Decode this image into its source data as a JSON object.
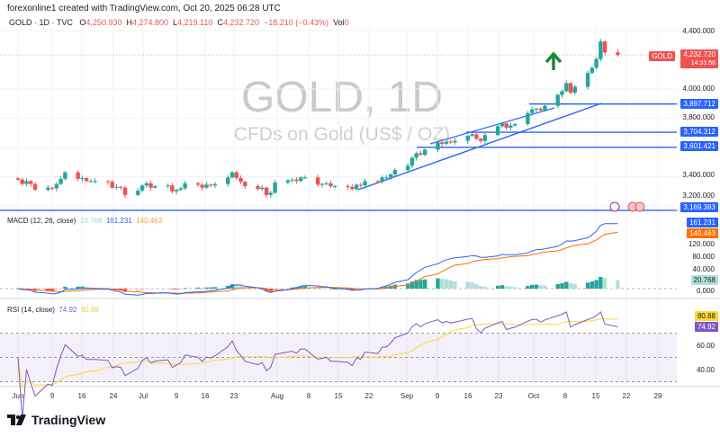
{
  "credit": "forexonline1 created with TradingView.com, Oct 20, 2025 06:28 UTC",
  "legend": {
    "symbol": "GOLD · 1D · TVC",
    "o_label": "O",
    "o": "4,250.930",
    "h_label": "H",
    "h": "4,274.800",
    "l_label": "L",
    "l": "4,219.110",
    "c_label": "C",
    "c": "4,232.720",
    "change": "−18.210 (−0.43%)",
    "vol_label": "Vol",
    "vol": "0"
  },
  "watermark": {
    "title": "GOLD, 1D",
    "subtitle": "CFDs on Gold (US$ / OZ)"
  },
  "price_axis": [
    "4,400.000",
    "4,000.000",
    "3,800.000",
    "3,400.000",
    "3,200.000"
  ],
  "price_tag": {
    "symbol": "GOLD",
    "price": "4,232.720",
    "countdown": "14:31:58"
  },
  "levels": [
    {
      "label": "3,897.712",
      "value": 3897.712
    },
    {
      "label": "3,704.312",
      "value": 3704.312
    },
    {
      "label": "3,601.421",
      "value": 3601.421
    },
    {
      "label": "3,169.383",
      "value": 3169.383
    }
  ],
  "macd": {
    "title": "MACD (12, 26, close)",
    "hist": "20.768",
    "macd": "161.231",
    "signal": "140.463",
    "axis": [
      "120.000",
      "80.000",
      "40.000",
      "0.000"
    ]
  },
  "rsi": {
    "title": "RSI (14, close)",
    "rsi": "74.92",
    "ma": "80.88",
    "axis": [
      "60.00",
      "40.00"
    ]
  },
  "date_axis": [
    "Jun",
    "9",
    "16",
    "24",
    "Jul",
    "9",
    "16",
    "23",
    "Aug",
    "8",
    "15",
    "22",
    "Sep",
    "9",
    "16",
    "23",
    "Oct",
    "8",
    "15",
    "22",
    "29"
  ],
  "footer": {
    "brand": "TradingView"
  },
  "colors": {
    "up": "#26a69a",
    "down": "#ef5350",
    "level": "#2962ff",
    "macd": "#2962ff",
    "signal": "#ff6d00",
    "rsi": "#7e57c2",
    "rsi_ma": "#fdd835",
    "arrow": "#1b8a3a"
  },
  "chart_data": {
    "type": "candlestick",
    "symbol": "GOLD",
    "interval": "1D",
    "start": "2025-06-02",
    "closes": [
      3380,
      3350,
      3370,
      3350,
      3310,
      3325,
      3320,
      3350,
      3385,
      3430,
      3385,
      3390,
      3370,
      3370,
      3370,
      3365,
      3325,
      3330,
      3325,
      3275,
      3305,
      3340,
      3355,
      3325,
      3335,
      3340,
      3300,
      3310,
      3320,
      3355,
      3345,
      3325,
      3345,
      3340,
      3350,
      3395,
      3430,
      3390,
      3365,
      3335,
      3315,
      3325,
      3275,
      3290,
      3360,
      3375,
      3380,
      3370,
      3395,
      3395,
      3345,
      3350,
      3355,
      3335,
      3335,
      3330,
      3315,
      3345,
      3340,
      3370,
      3365,
      3395,
      3395,
      3415,
      3445,
      3475,
      3530,
      3560,
      3550,
      3585,
      3635,
      3625,
      3640,
      3635,
      3645,
      3680,
      3690,
      3660,
      3645,
      3685,
      3745,
      3765,
      3735,
      3750,
      3760,
      3835,
      3860,
      3865,
      3855,
      3885,
      3960,
      3985,
      4040,
      3975,
      4015,
      4110,
      4145,
      4205,
      4325,
      4250,
      4232.72
    ],
    "last": {
      "open": 4250.93,
      "high": 4274.8,
      "low": 4219.11,
      "close": 4232.72
    },
    "price_range": [
      3150,
      4420
    ]
  }
}
